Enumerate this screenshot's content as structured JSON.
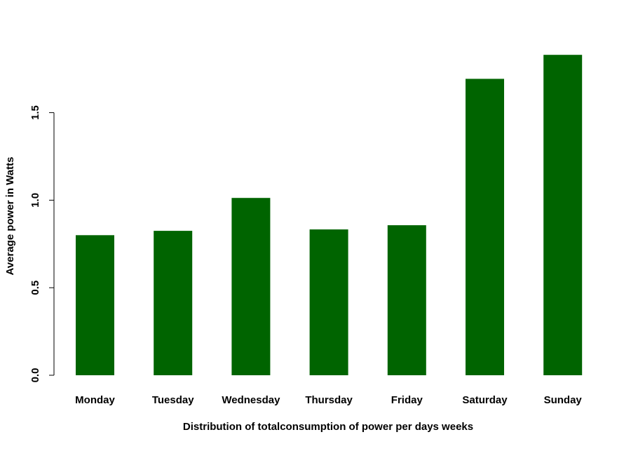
{
  "chart_data": {
    "type": "bar",
    "title": "",
    "xlabel": "Distribution of totalconsumption of power per days weeks",
    "ylabel": "Average power in Watts",
    "categories": [
      "Monday",
      "Tuesday",
      "Wednesday",
      "Thursday",
      "Friday",
      "Saturday",
      "Sunday"
    ],
    "values": [
      0.8,
      0.825,
      1.013,
      0.833,
      0.857,
      1.693,
      1.83
    ],
    "ylim": [
      0,
      1.83
    ],
    "yticks": [
      "0.0",
      "0.5",
      "1.0",
      "1.5"
    ],
    "bar_color": "#006400",
    "grid": false,
    "legend": "none"
  }
}
